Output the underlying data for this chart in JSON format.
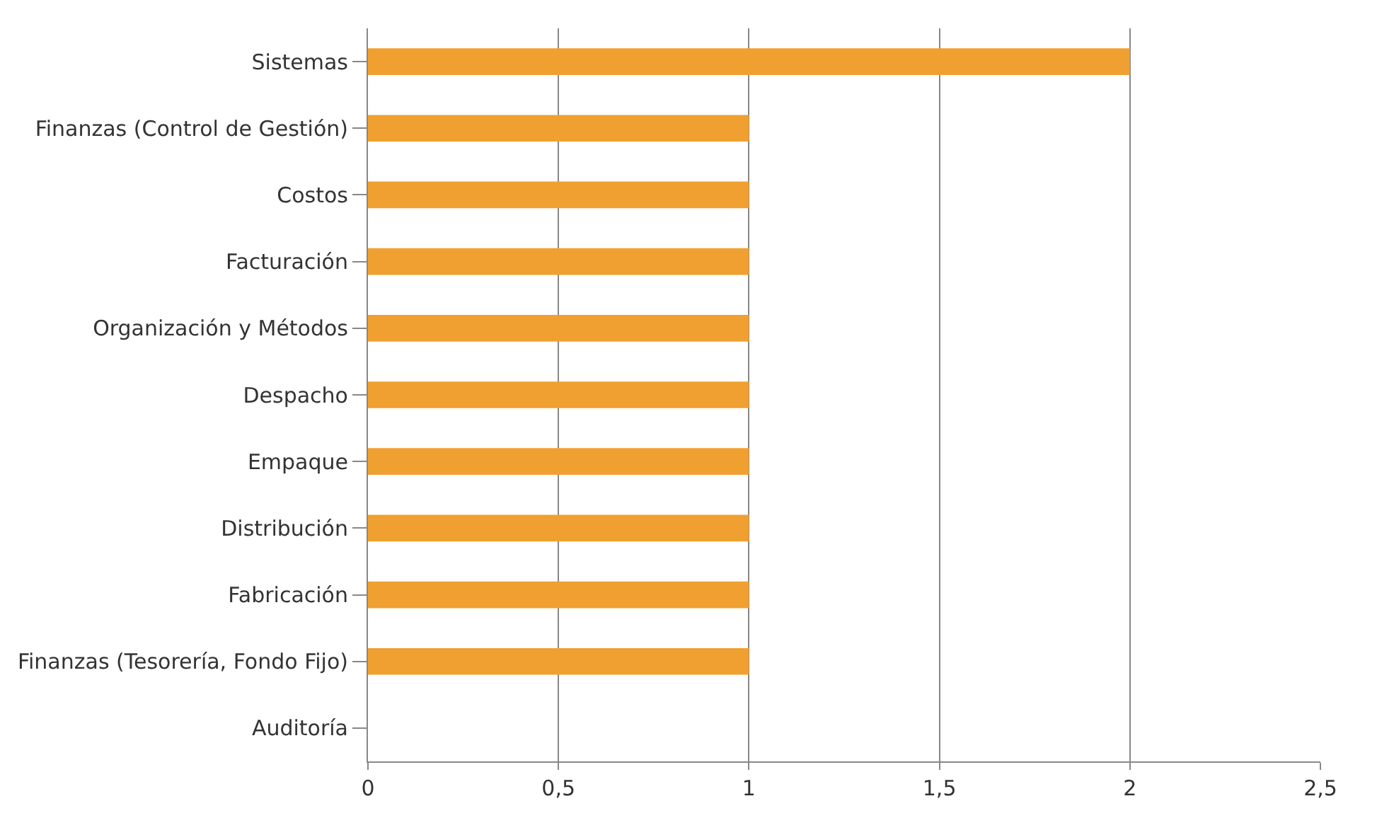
{
  "chart_data": {
    "type": "bar",
    "orientation": "horizontal",
    "categories": [
      "Sistemas",
      "Finanzas (Control de Gestión)",
      "Costos",
      "Facturación",
      "Organización y Métodos",
      "Despacho",
      "Empaque",
      "Distribución",
      "Fabricación",
      "Finanzas (Tesorería, Fondo Fijo)",
      "Auditoría"
    ],
    "values": [
      2,
      1,
      1,
      1,
      1,
      1,
      1,
      1,
      1,
      1,
      0
    ],
    "color": "#f0a030",
    "xlim": [
      0,
      2.5
    ],
    "xticks": [
      0,
      {
        "value": 0.5,
        "label": "0,5"
      },
      1,
      {
        "value": 1.5,
        "label": "1,5"
      },
      2,
      {
        "value": 2.5,
        "label": "2,5"
      }
    ],
    "grid": "x"
  }
}
